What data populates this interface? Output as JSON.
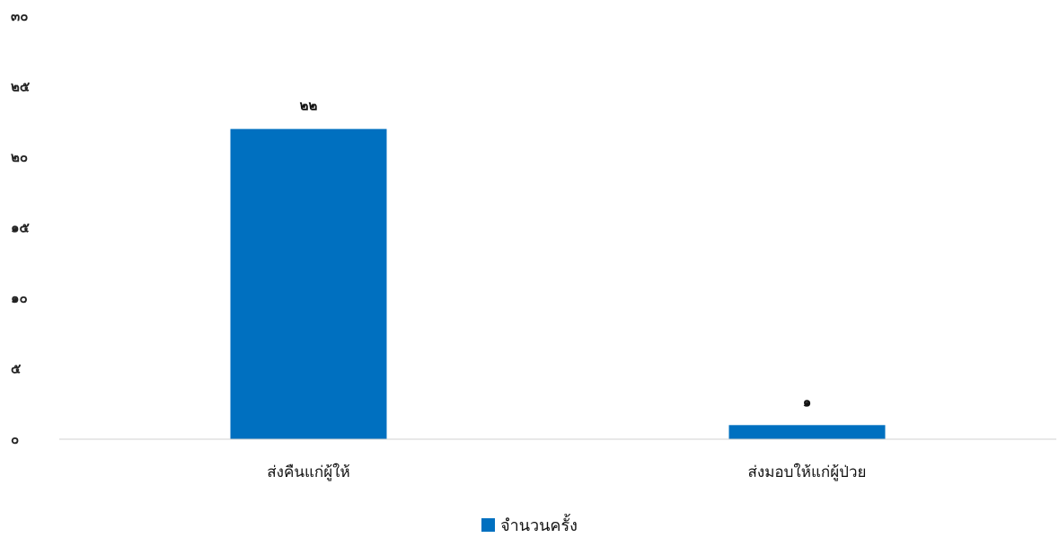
{
  "chart_data": {
    "type": "bar",
    "categories": [
      "ส่งคืนแก่ผู้ให้",
      "ส่งมอบให้แก่ผู้ป่วย"
    ],
    "series": [
      {
        "name": "จำนวนครั้ง",
        "values": [
          22,
          1
        ],
        "value_labels": [
          "๒๒",
          "๑"
        ],
        "color": "#0070C0"
      }
    ],
    "ylim": [
      0,
      30
    ],
    "yticks": [
      0,
      5,
      10,
      15,
      20,
      25,
      30
    ],
    "ytick_labels": [
      "๐",
      "๕",
      "๑๐",
      "๑๕",
      "๒๐",
      "๒๕",
      "๓๐"
    ],
    "grid": false,
    "legend": "bottom",
    "title": "",
    "xlabel": "",
    "ylabel": ""
  },
  "colors": {
    "axis": "#d0d0d0",
    "bar": "#0070C0"
  }
}
